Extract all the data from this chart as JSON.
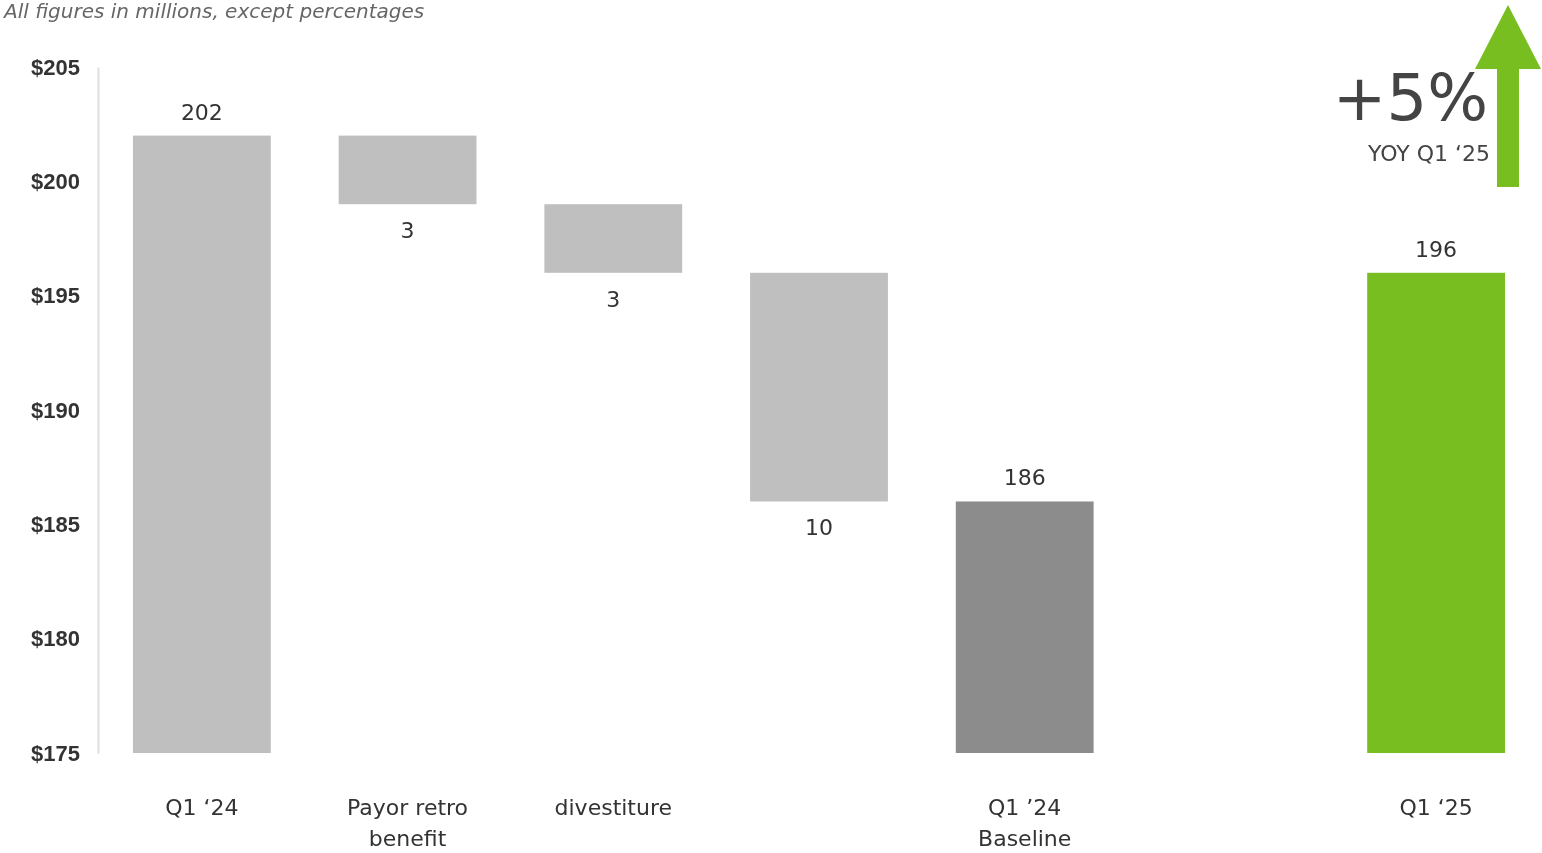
{
  "chart_data": {
    "type": "bar",
    "title": "All figures in millions, except percentages",
    "categories": [
      "Q1 ‘24",
      "Payor retro benefit",
      "divestiture",
      null,
      "Q1 ’24 Baseline",
      null,
      "Q1 ‘25"
    ],
    "values": [
      27,
      3,
      3,
      10,
      11,
      null,
      21
    ],
    "base": [
      175,
      199,
      196,
      186,
      175,
      null,
      175
    ],
    "colors": [
      "#bfbfbf",
      "#bfbfbf",
      "#bfbfbf",
      "#bfbfbf",
      "#8c8c8c",
      null,
      "#78be20"
    ],
    "value_labels": [
      "202",
      "3",
      "3",
      "10",
      "186",
      null,
      "196"
    ],
    "ylim": [
      175,
      205
    ],
    "yticks": [
      {
        "value": 175,
        "label": "$175"
      },
      {
        "value": 180,
        "label": "$180"
      },
      {
        "value": 185,
        "label": "$185"
      },
      {
        "value": 190,
        "label": "$190"
      },
      {
        "value": 195,
        "label": "$195"
      },
      {
        "value": 200,
        "label": "$200"
      },
      {
        "value": 205,
        "label": "$205"
      }
    ],
    "annotations": [
      "+5%",
      "YOY Q1 ‘25"
    ]
  }
}
